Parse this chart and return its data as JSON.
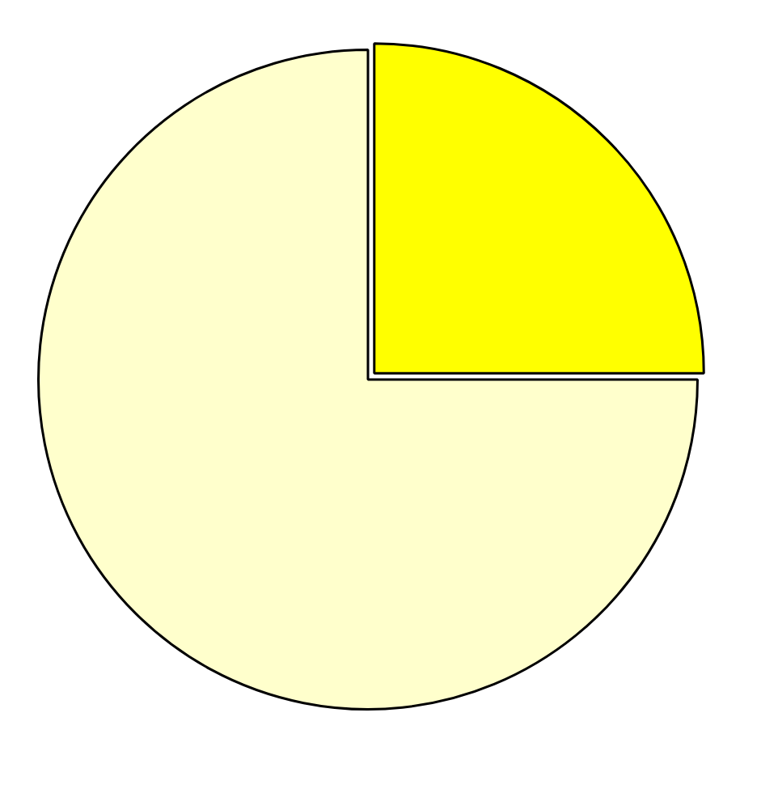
{
  "chart_data": {
    "type": "pie",
    "categories": [
      null,
      null
    ],
    "values": [
      25,
      75
    ],
    "colors": [
      "#ffff00",
      "#ffffcc"
    ],
    "legend": false
  }
}
